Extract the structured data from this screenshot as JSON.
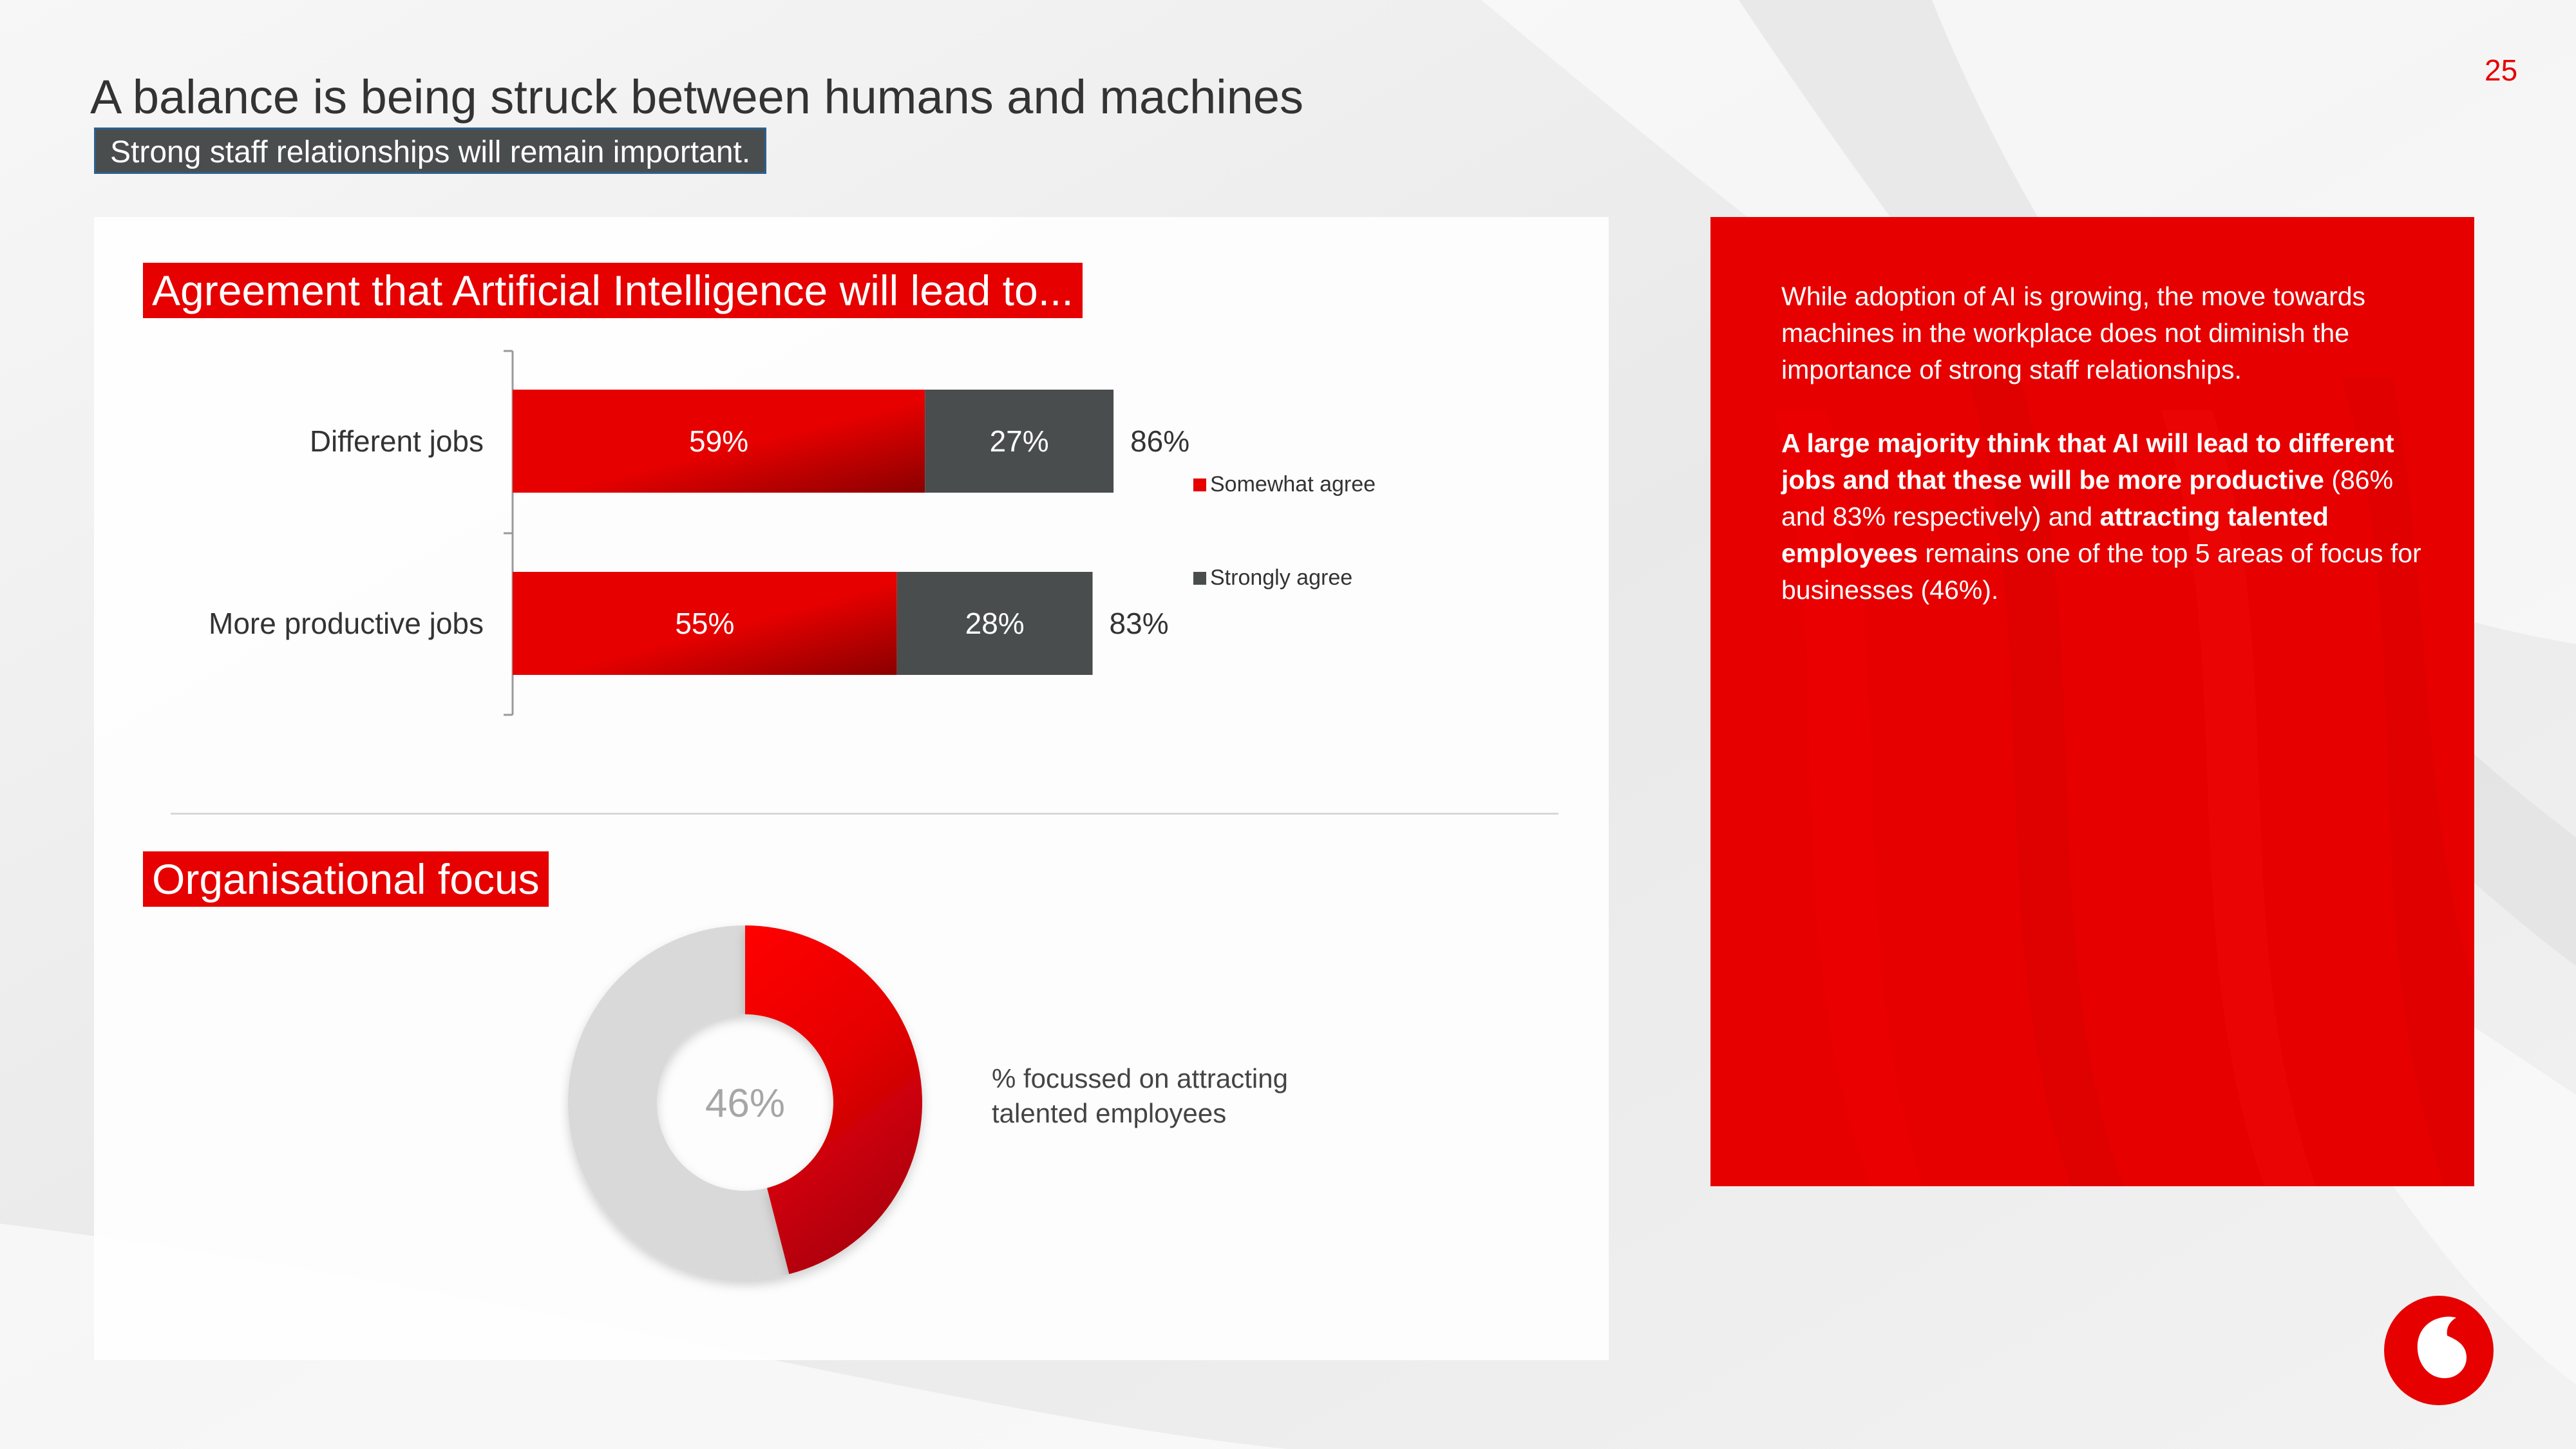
{
  "page_number": "25",
  "title": "A balance is being struck between humans and machines",
  "subtitle": "Strong staff relationships will remain important.",
  "colors": {
    "brand_red": "#e60000",
    "dark_red": "#8a0000",
    "dark_grey": "#4a4d4e",
    "light_grey": "#d9d9d9"
  },
  "ai_section": {
    "label": "Agreement that Artificial Intelligence will lead to..."
  },
  "focus_section": {
    "label": "Organisational focus"
  },
  "chart_data": [
    {
      "type": "bar",
      "orientation": "horizontal",
      "stacked": true,
      "categories": [
        "Different jobs",
        "More productive jobs"
      ],
      "series": [
        {
          "name": "Somewhat agree",
          "values": [
            59,
            55
          ],
          "labels": [
            "59%",
            "55%"
          ],
          "color": "#e60000"
        },
        {
          "name": "Strongly agree",
          "values": [
            27,
            28
          ],
          "labels": [
            "27%",
            "28%"
          ],
          "color": "#4a4d4e"
        }
      ],
      "totals": [
        "86%",
        "83%"
      ],
      "legend": "right"
    },
    {
      "type": "pie",
      "variant": "donut",
      "value": 46,
      "center_label": "46%",
      "caption": "% focussed on attracting talented employees",
      "colors": [
        "#e60000",
        "#d9d9d9"
      ]
    }
  ],
  "side_panel": {
    "p1": "While adoption of AI is growing, the move towards machines in the workplace does not diminish the importance of strong staff relationships.",
    "p2_bold_1": "A large majority think that AI will lead to different jobs and that these will be more productive",
    "p2_text_1": " (86% and 83% respectively) and ",
    "p2_bold_2": "attracting talented employees",
    "p2_text_2": " remains one of the top 5 areas of focus for businesses (46%)."
  },
  "logo_icon": "vodafone-speechmark-icon"
}
